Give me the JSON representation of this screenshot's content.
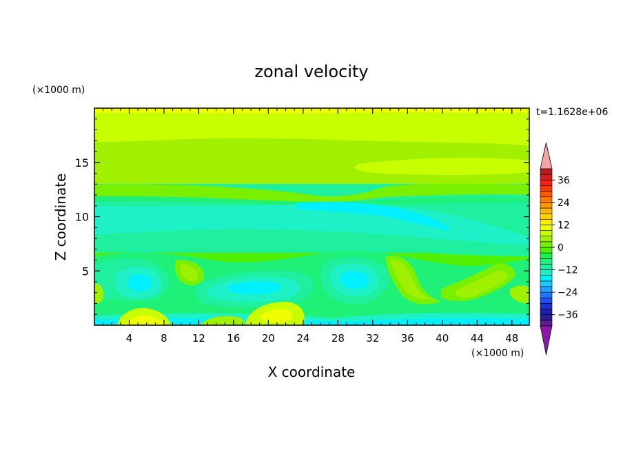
{
  "chart_data": {
    "type": "heatmap",
    "title": "zonal velocity",
    "xlabel": "X coordinate",
    "ylabel": "Z coordinate",
    "x_unit_label": "(×1000 m)",
    "y_unit_label": "(×1000 m)",
    "time_label": "t=1.1628e+06",
    "xlim": [
      0,
      50
    ],
    "ylim": [
      0,
      20
    ],
    "x_ticks": [
      4,
      8,
      12,
      16,
      20,
      24,
      28,
      32,
      36,
      40,
      44,
      48
    ],
    "y_ticks": [
      5,
      10,
      15
    ],
    "colorbar": {
      "levels": [
        -42,
        -39,
        -36,
        -33,
        -30,
        -27,
        -24,
        -21,
        -18,
        -15,
        -12,
        -9,
        -6,
        -3,
        0,
        3,
        6,
        9,
        12,
        15,
        18,
        21,
        24,
        27,
        30,
        33,
        36,
        39,
        42
      ],
      "labels": [
        36,
        24,
        12,
        0,
        -12,
        -24,
        -36
      ],
      "label_texts": [
        "36",
        "24",
        "12",
        "0",
        "−12",
        "−24",
        "−36"
      ],
      "colors": [
        "#5b1c8c",
        "#2d1e8e",
        "#1e1ea8",
        "#1e32d2",
        "#1e50f0",
        "#1e78ff",
        "#1ea0ff",
        "#1ec8ff",
        "#00f0ff",
        "#1ef0c8",
        "#1ef0a0",
        "#1ef078",
        "#1ef050",
        "#50f000",
        "#78f000",
        "#a0f000",
        "#c8ff00",
        "#f0ff00",
        "#fff000",
        "#ffd200",
        "#ffb400",
        "#ff9600",
        "#ff7800",
        "#ff5a00",
        "#ff3c00",
        "#ff1e1e",
        "#d21e1e",
        "#b41e1e"
      ],
      "over_color": "#f4a6a6",
      "under_color": "#8c1aa8"
    }
  }
}
